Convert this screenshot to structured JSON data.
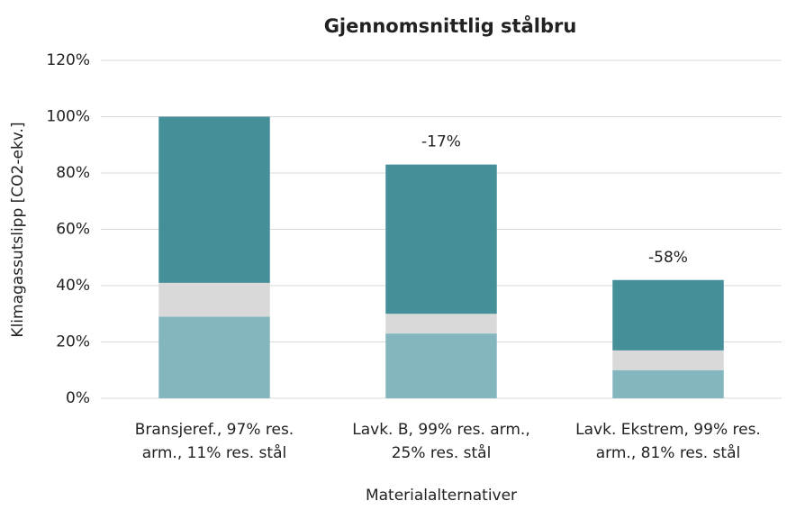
{
  "chart_data": {
    "type": "stacked_bar",
    "title": "Gjennomsnittlig stålbru",
    "xlabel": "Materialalternativer",
    "ylabel": "Klimagassutslipp [CO2-ekv.]",
    "categories": [
      "Bransjeref., 97% res. arm., 11% res. stål",
      "Lavk. B, 99% res. arm., 25% res. stål",
      "Lavk. Ekstrem, 99% res. arm., 81% res. stål"
    ],
    "series": [
      {
        "color": "#84b6bf",
        "values": [
          29,
          23,
          10
        ]
      },
      {
        "color": "#d9d9d9",
        "values": [
          12,
          7,
          7
        ]
      },
      {
        "color": "#458f99",
        "values": [
          59,
          53,
          25
        ]
      }
    ],
    "annotations": [
      null,
      "-17%",
      "-58%"
    ],
    "ylim": [
      0,
      120
    ],
    "yticks": [
      {
        "value": 0,
        "label": "0%"
      },
      {
        "value": 20,
        "label": "20%"
      },
      {
        "value": 40,
        "label": "40%"
      },
      {
        "value": 60,
        "label": "60%"
      },
      {
        "value": 80,
        "label": "80%"
      },
      {
        "value": 100,
        "label": "100%"
      },
      {
        "value": 120,
        "label": "120%"
      }
    ],
    "grid": true
  }
}
